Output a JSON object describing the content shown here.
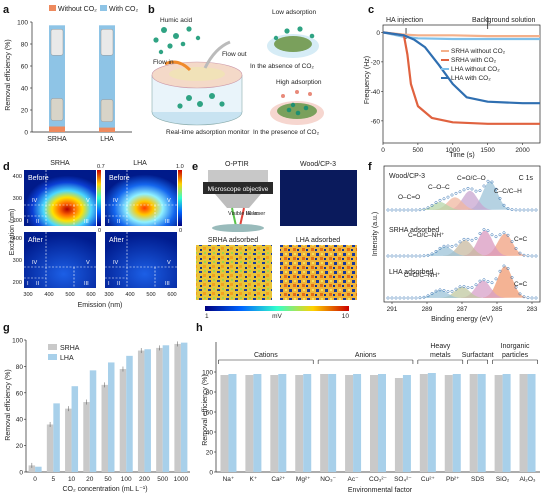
{
  "colors": {
    "orange": "#ee8a5e",
    "blue": "#8ec4e6",
    "grey": "#c9c9c9",
    "lightblue": "#a8d0ea",
    "teal": "#3fae8e",
    "darkblue": "#2f6fb1",
    "red": "#e0623f"
  },
  "panel_a": {
    "letter": "a",
    "ylabel": "Removal efficiency (%)",
    "legend": [
      "Without CO₂",
      "With CO₂"
    ],
    "chart_data": {
      "type": "bar",
      "categories": [
        "SRHA",
        "LHA"
      ],
      "ylim": [
        0,
        100
      ],
      "yticks": [
        0,
        20,
        40,
        60,
        80,
        100
      ],
      "series": [
        {
          "name": "Without CO₂",
          "values": [
            5,
            4
          ]
        },
        {
          "name": "With CO₂",
          "values": [
            97,
            97
          ]
        }
      ]
    }
  },
  "panel_b": {
    "letter": "b",
    "humic": "Humic acid",
    "flow_in": "Flow in",
    "flow_out": "Flow out",
    "monitor": "Real-time adsorption monitor",
    "low": "Low adsorption",
    "absence": "In the absence of CO₂",
    "high": "High adsorption",
    "presence": "In the presence of CO₂"
  },
  "panel_c": {
    "letter": "c",
    "ha_injection": "HA injection",
    "background": "Background solution",
    "xlabel": "Time (s)",
    "ylabel": "Frequency (Hz)",
    "chart_data": {
      "type": "line",
      "xlim": [
        0,
        2250
      ],
      "ylim": [
        -75,
        5
      ],
      "xticks": [
        0,
        500,
        1000,
        1500,
        2000
      ],
      "yticks": [
        -60,
        -40,
        -20,
        0
      ],
      "series": [
        {
          "name": "SRHA without CO₂",
          "x": [
            0,
            300,
            500,
            1000,
            1500,
            2000,
            2250
          ],
          "y": [
            0,
            -1.5,
            -2,
            -2,
            -2.5,
            -2.5,
            -2.5
          ]
        },
        {
          "name": "SRHA with CO₂",
          "x": [
            0,
            300,
            350,
            400,
            500,
            700,
            1000,
            1500,
            2000,
            2250
          ],
          "y": [
            0,
            -2,
            -15,
            -35,
            -50,
            -58,
            -61,
            -62,
            -62,
            -62
          ]
        },
        {
          "name": "LHA without CO₂",
          "x": [
            0,
            300,
            500,
            1000,
            1500,
            2000,
            2250
          ],
          "y": [
            0,
            -3,
            -4,
            -4.5,
            -4.5,
            -4.5,
            -4.5
          ]
        },
        {
          "name": "LHA with CO₂",
          "x": [
            0,
            300,
            450,
            600,
            800,
            1000,
            1200,
            1500,
            2000,
            2250
          ],
          "y": [
            0,
            -2,
            -5,
            -10,
            -22,
            -35,
            -44,
            -47,
            -48,
            -48
          ]
        }
      ]
    }
  },
  "panel_d": {
    "letter": "d",
    "srha": "SRHA",
    "lha": "LHA",
    "before": "Before",
    "after": "After",
    "ylabel": "Excitation (nm)",
    "xlabel": "Emission (nm)",
    "xticks": [
      "300",
      "400",
      "500",
      "600"
    ],
    "yticks": [
      "200",
      "300",
      "400"
    ],
    "cb1": [
      "0.7",
      "0"
    ],
    "cb2": [
      "1.0",
      "0"
    ],
    "regions": [
      "I",
      "II",
      "III",
      "IV",
      "V"
    ]
  },
  "panel_e": {
    "letter": "e",
    "optir": "O-PTIR",
    "wood": "Wood/CP-3",
    "objective": "Microscope objective",
    "visible": "Visible laser",
    "ir": "IR laser",
    "srha_ads": "SRHA adsorbed",
    "lha_ads": "LHA adsorbed",
    "cb_min": "1",
    "cb_unit": "mV",
    "cb_max": "10"
  },
  "panel_f": {
    "letter": "f",
    "c1s": "C 1s",
    "xlabel": "Binding energy (eV)",
    "ylabel": "Intensity (a.u.)",
    "xticks": [
      "291",
      "289",
      "287",
      "285",
      "283"
    ],
    "spectra": [
      {
        "title": "Wood/CP-3",
        "labels": [
          "C=O/C–O",
          "C–O–C",
          "O–C=O",
          "C–C/C–H"
        ]
      },
      {
        "title": "SRHA adsorbed",
        "labels": [
          "C=O/C–NH⁺",
          "C=C"
        ]
      },
      {
        "title": "LHA adsorbed",
        "labels": [
          "C=O/C–NH⁺",
          "C=C"
        ]
      }
    ]
  },
  "panel_g": {
    "letter": "g",
    "ylabel": "Removal efficiency (%)",
    "xlabel": "CO₂ concentration (mL L⁻¹)",
    "chart_data": {
      "type": "bar",
      "categories": [
        "0",
        "5",
        "10",
        "20",
        "50",
        "100",
        "200",
        "500",
        "1000"
      ],
      "ylim": [
        0,
        100
      ],
      "yticks": [
        0,
        20,
        40,
        60,
        80,
        100
      ],
      "series": [
        {
          "name": "SRHA",
          "values": [
            5,
            36,
            48,
            53,
            66,
            78,
            92,
            94,
            97
          ]
        },
        {
          "name": "LHA",
          "values": [
            4,
            52,
            65,
            77,
            83,
            88,
            93,
            96,
            98
          ]
        }
      ]
    }
  },
  "panel_h": {
    "letter": "h",
    "ylabel": "Removal efficiency (%)",
    "xlabel": "Environmental factor",
    "groups": [
      "Cations",
      "Anions",
      "Heavy metals",
      "Surfactant",
      "Inorganic particles"
    ],
    "chart_data": {
      "type": "bar",
      "categories": [
        "Na⁺",
        "K⁺",
        "Ca²⁺",
        "Mg²⁺",
        "NO₃⁻",
        "Ac⁻",
        "CO₃²⁻",
        "SO₄²⁻",
        "Cu²⁺",
        "Pb²⁺",
        "SDS",
        "SiO₂",
        "Al₂O₃"
      ],
      "ylim": [
        0,
        100
      ],
      "yticks": [
        0,
        20,
        40,
        60,
        80,
        100
      ],
      "series": [
        {
          "name": "SRHA",
          "values": [
            97,
            97,
            97,
            97,
            98,
            97,
            97,
            94,
            98,
            97,
            98,
            97,
            98
          ]
        },
        {
          "name": "LHA",
          "values": [
            98,
            98,
            98,
            98,
            98,
            98,
            98,
            97,
            99,
            98,
            98,
            98,
            98
          ]
        }
      ]
    }
  }
}
